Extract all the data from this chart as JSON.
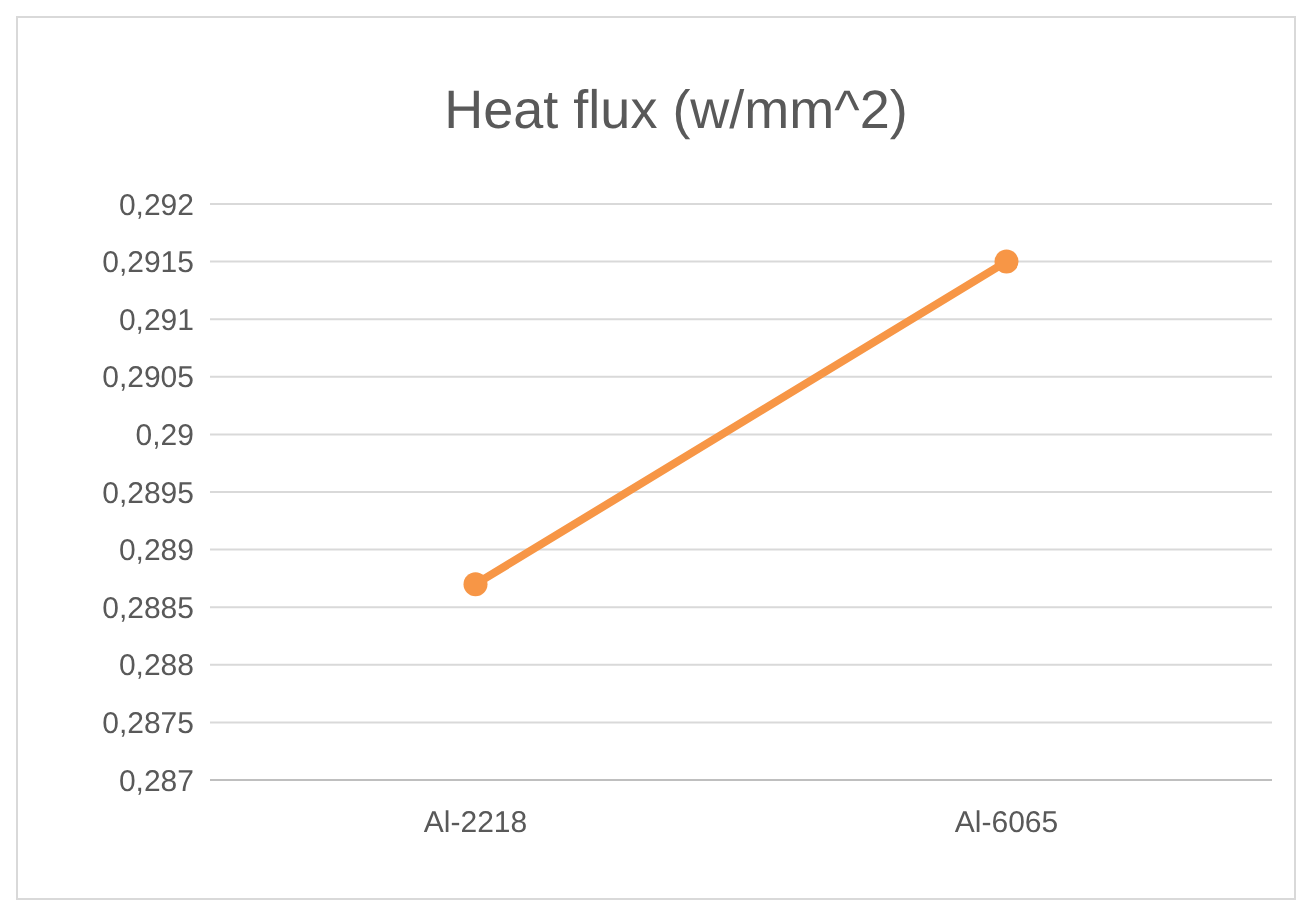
{
  "chart_data": {
    "type": "line",
    "title": "Heat flux (w/mm^2)",
    "categories": [
      "Al-2218",
      "Al-6065"
    ],
    "series": [
      {
        "color": "#f79646",
        "values": [
          0.2887,
          0.2915
        ]
      }
    ],
    "ylim": [
      0.287,
      0.292
    ],
    "yticks": [
      {
        "value": 0.287,
        "label": "0,287"
      },
      {
        "value": 0.2875,
        "label": "0,2875"
      },
      {
        "value": 0.288,
        "label": "0,288"
      },
      {
        "value": 0.2885,
        "label": "0,2885"
      },
      {
        "value": 0.289,
        "label": "0,289"
      },
      {
        "value": 0.2895,
        "label": "0,2895"
      },
      {
        "value": 0.29,
        "label": "0,29"
      },
      {
        "value": 0.2905,
        "label": "0,2905"
      },
      {
        "value": 0.291,
        "label": "0,291"
      },
      {
        "value": 0.2915,
        "label": "0,2915"
      },
      {
        "value": 0.292,
        "label": "0,292"
      }
    ],
    "grid": "y",
    "marker": "circle"
  }
}
